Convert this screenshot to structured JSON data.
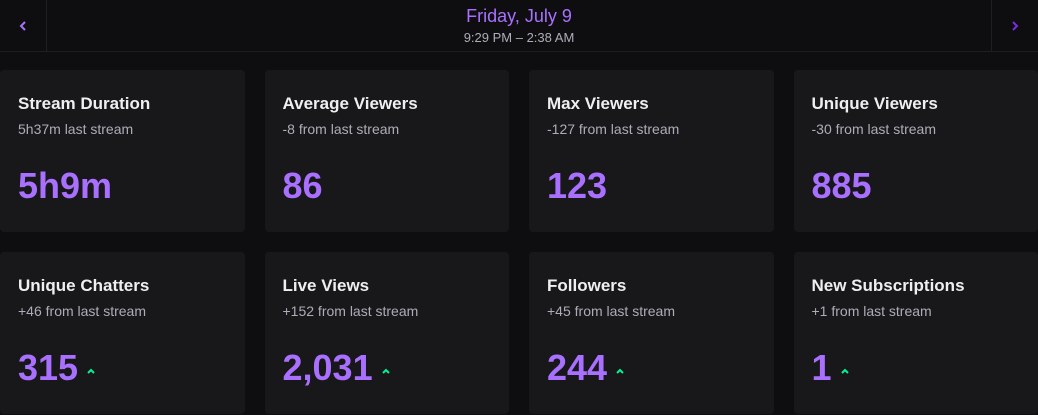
{
  "header": {
    "title": "Friday, July 9",
    "subtitle": "9:29 PM – 2:38 AM"
  },
  "cards": [
    {
      "title": "Stream Duration",
      "subtitle": "5h37m last stream",
      "value": "5h9m"
    },
    {
      "title": "Average Viewers",
      "subtitle": "-8 from last stream",
      "value": "86"
    },
    {
      "title": "Max Viewers",
      "subtitle": "-127 from last stream",
      "value": "123"
    },
    {
      "title": "Unique Viewers",
      "subtitle": "-30 from last stream",
      "value": "885"
    },
    {
      "title": "Unique Chatters",
      "subtitle": "+46 from last stream",
      "value": "315"
    },
    {
      "title": "Live Views",
      "subtitle": "+152 from last stream",
      "value": "2,031"
    },
    {
      "title": "Followers",
      "subtitle": "+45 from last stream",
      "value": "244"
    },
    {
      "title": "New Subscriptions",
      "subtitle": "+1 from last stream",
      "value": "1"
    }
  ]
}
